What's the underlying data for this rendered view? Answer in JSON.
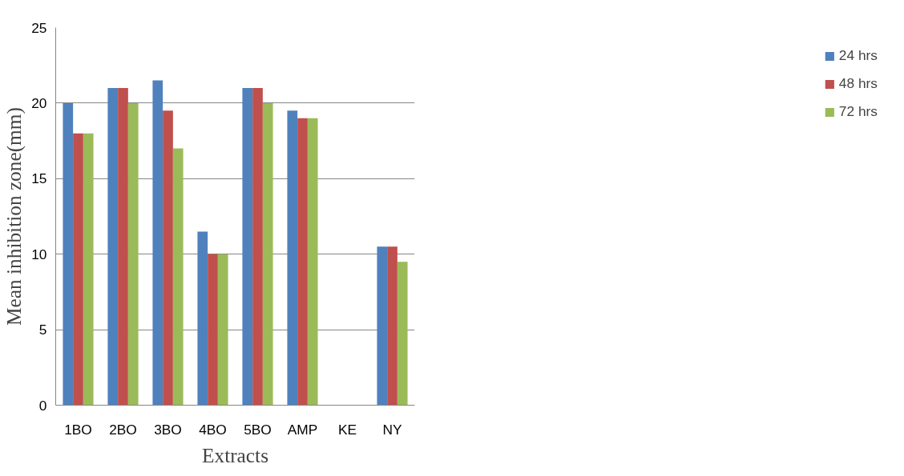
{
  "chart_data": {
    "type": "bar",
    "xlabel": "Extracts",
    "ylabel": "Mean inhibition zone(mm)",
    "categories": [
      "1BO",
      "2BO",
      "3BO",
      "4BO",
      "5BO",
      "AMP",
      "KE",
      "NY"
    ],
    "series": [
      {
        "name": "24 hrs",
        "color": "#4f81bd",
        "values": [
          20,
          21,
          21.5,
          11.5,
          21,
          19.5,
          0,
          10.5
        ]
      },
      {
        "name": "48 hrs",
        "color": "#c0504d",
        "values": [
          18,
          21,
          19.5,
          10,
          21,
          19,
          0,
          10.5
        ]
      },
      {
        "name": "72 hrs",
        "color": "#9bbb59",
        "values": [
          18,
          20,
          17,
          10,
          20,
          19,
          0,
          9.5
        ]
      }
    ],
    "ylim": [
      0,
      25
    ],
    "yticks": [
      0,
      5,
      10,
      15,
      20,
      25
    ],
    "grid": "y",
    "legend": "right"
  }
}
